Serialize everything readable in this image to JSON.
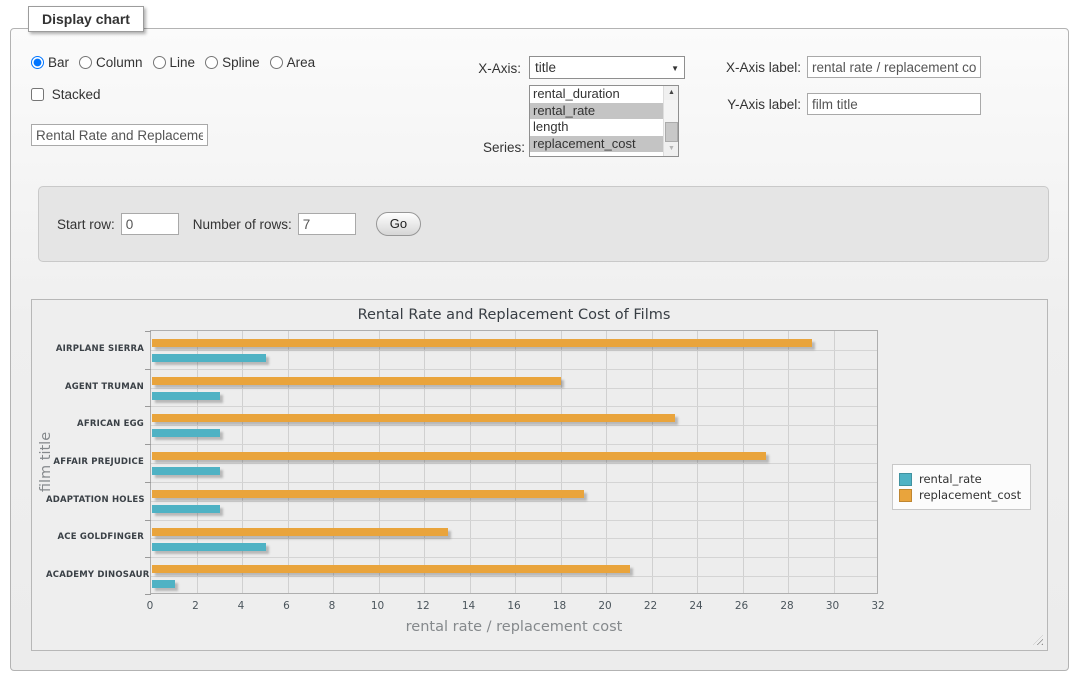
{
  "panel": {
    "legend": "Display chart"
  },
  "chart_type": {
    "options": [
      {
        "label": "Bar",
        "selected": true
      },
      {
        "label": "Column",
        "selected": false
      },
      {
        "label": "Line",
        "selected": false
      },
      {
        "label": "Spline",
        "selected": false
      },
      {
        "label": "Area",
        "selected": false
      }
    ]
  },
  "stacked": {
    "label": "Stacked",
    "checked": false
  },
  "title_input": {
    "value": "Rental Rate and Replacement Cost of Films"
  },
  "x_axis": {
    "label": "X-Axis:",
    "selected": "title"
  },
  "series_select": {
    "label": "Series:",
    "options": [
      {
        "label": "rental_duration",
        "selected": false
      },
      {
        "label": "rental_rate",
        "selected": true
      },
      {
        "label": "length",
        "selected": false
      },
      {
        "label": "replacement_cost",
        "selected": true
      }
    ]
  },
  "x_axis_label": {
    "label": "X-Axis label:",
    "value": "rental rate / replacement cost"
  },
  "y_axis_label": {
    "label": "Y-Axis label:",
    "value": "film title"
  },
  "rows_form": {
    "start_row_label": "Start row:",
    "start_row_value": "0",
    "num_rows_label": "Number of rows:",
    "num_rows_value": "7",
    "go_label": "Go"
  },
  "chart_data": {
    "type": "bar",
    "orientation": "horizontal",
    "title": "Rental Rate and Replacement Cost of Films",
    "xlabel": "rental rate / replacement cost",
    "ylabel": "film title",
    "categories": [
      "AIRPLANE SIERRA",
      "AGENT TRUMAN",
      "AFRICAN EGG",
      "AFFAIR PREJUDICE",
      "ADAPTATION HOLES",
      "ACE GOLDFINGER",
      "ACADEMY DINOSAUR"
    ],
    "series": [
      {
        "name": "rental_rate",
        "color": "#4fb2c4",
        "values": [
          4.99,
          2.99,
          2.99,
          2.99,
          2.99,
          4.99,
          0.99
        ]
      },
      {
        "name": "replacement_cost",
        "color": "#e9a43c",
        "values": [
          28.99,
          17.99,
          22.99,
          26.99,
          18.99,
          12.99,
          20.99
        ]
      }
    ],
    "xlim": [
      0,
      32
    ],
    "xticks": [
      0,
      2,
      4,
      6,
      8,
      10,
      12,
      14,
      16,
      18,
      20,
      22,
      24,
      26,
      28,
      30,
      32
    ],
    "grid": true,
    "legend_position": "right"
  }
}
